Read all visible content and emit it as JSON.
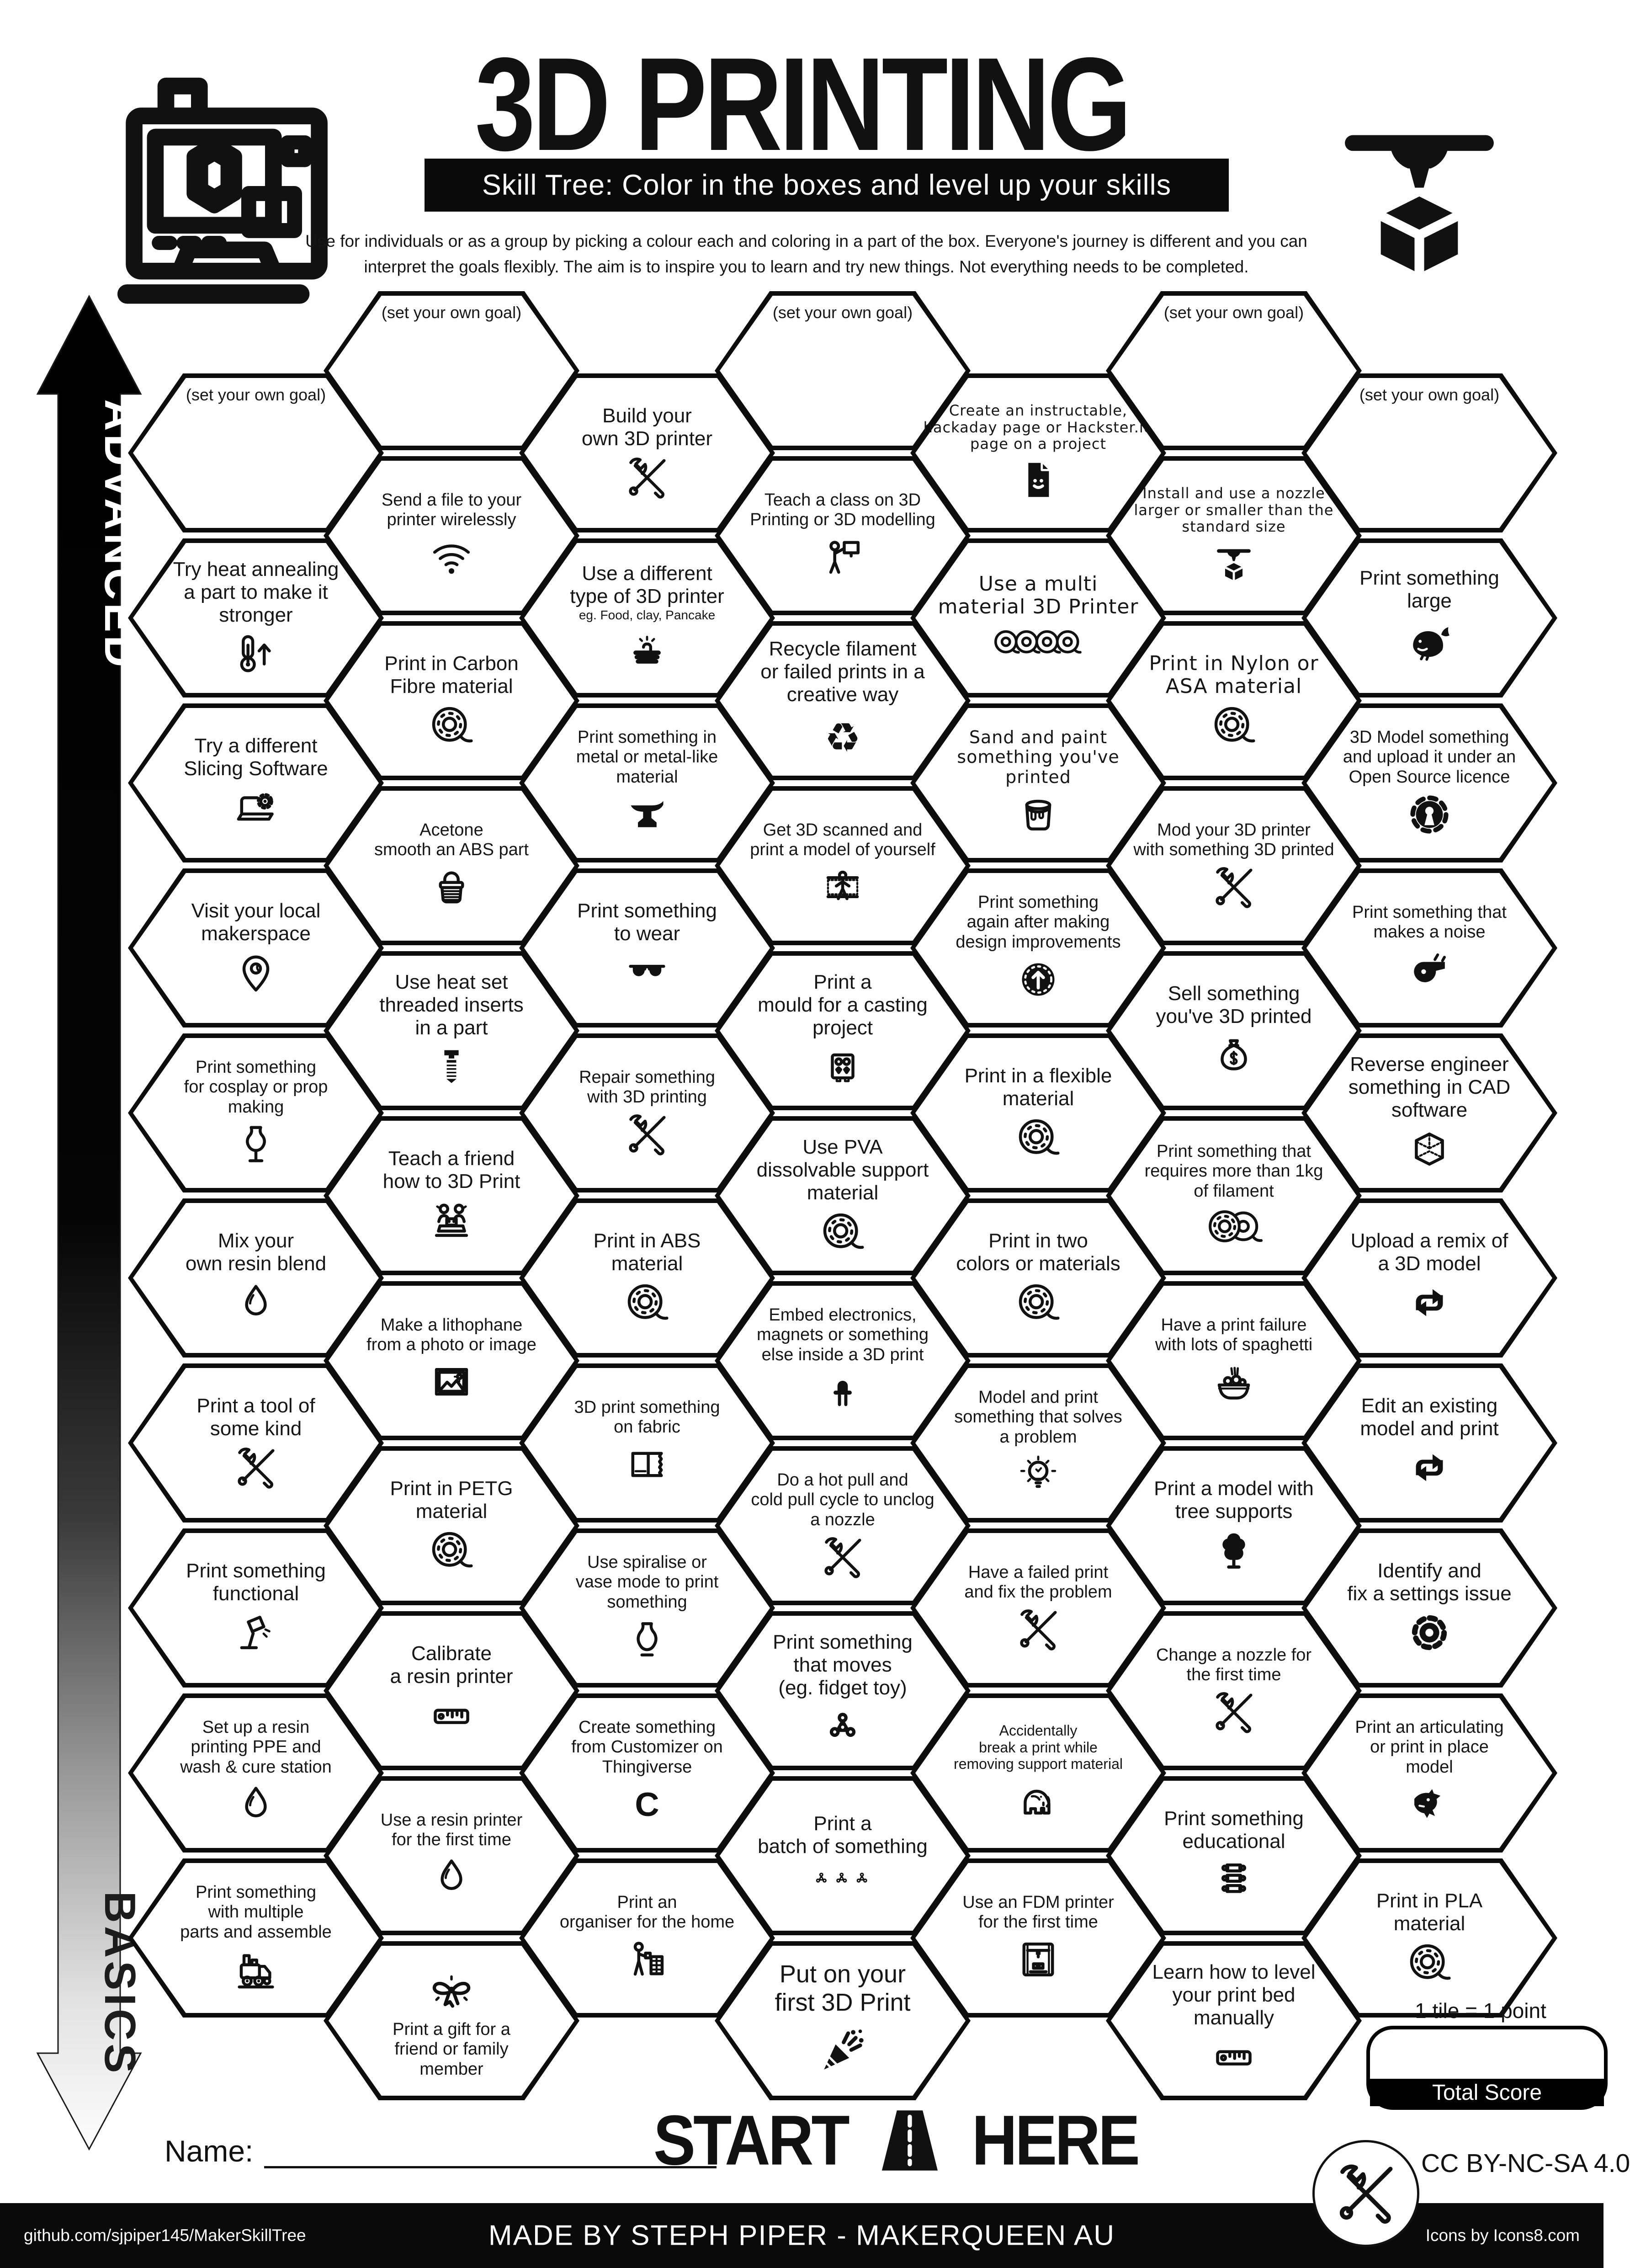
{
  "header": {
    "title": "3D PRINTING",
    "subtitle": "Skill Tree:  Color in the boxes and level up your skills",
    "description": [
      "Use for individuals or as a group by picking a colour each and coloring in a part of the box.  Everyone's journey is different and you can",
      "interpret the goals flexibly.  The aim is to inspire you to learn and try new things. Not everything needs to be completed."
    ],
    "left_icon": "3d-printer-icon",
    "right_icon": "printhead-cube-icon"
  },
  "axis": {
    "top_label": "ADVANCED",
    "bottom_label": "BASICS"
  },
  "hexes": [
    {
      "c": 1,
      "r": 0,
      "name": "goal-1",
      "goal": true,
      "lines": [
        "(set your own goal)"
      ]
    },
    {
      "c": 1,
      "r": 1,
      "name": "heat-annealing",
      "icon": "thermometer",
      "lines": [
        "Try heat annealing",
        "a part to make it",
        "stronger"
      ]
    },
    {
      "c": 1,
      "r": 2,
      "name": "slicing-software",
      "icon": "laptopgear",
      "lines": [
        "Try a different",
        "Slicing Software"
      ]
    },
    {
      "c": 1,
      "r": 3,
      "name": "visit-makerspace",
      "icon": "pin",
      "lines": [
        "Visit your local",
        "makerspace"
      ]
    },
    {
      "c": 1,
      "r": 4,
      "name": "cosplay-prop",
      "icon": "mannequin",
      "size": "s",
      "lines": [
        "Print something",
        "for cosplay or prop",
        "making"
      ]
    },
    {
      "c": 1,
      "r": 5,
      "name": "resin-blend",
      "icon": "droplet",
      "lines": [
        "Mix your",
        "own resin blend"
      ]
    },
    {
      "c": 1,
      "r": 6,
      "name": "print-tool",
      "icon": "tools",
      "lines": [
        "Print a tool of",
        "some kind"
      ]
    },
    {
      "c": 1,
      "r": 7,
      "name": "print-functional",
      "icon": "lamp",
      "lines": [
        "Print something",
        "functional"
      ]
    },
    {
      "c": 1,
      "r": 8,
      "name": "resin-ppe-station",
      "icon": "droplet",
      "size": "s",
      "lines": [
        "Set up a resin",
        "printing PPE and",
        "wash & cure station"
      ]
    },
    {
      "c": 1,
      "r": 9,
      "name": "multiple-parts",
      "icon": "train",
      "size": "s",
      "lines": [
        "Print something",
        "with multiple",
        "parts and assemble"
      ]
    },
    {
      "c": 2,
      "r": 0,
      "name": "goal-2",
      "goal": true,
      "lines": [
        "(set your own goal)"
      ]
    },
    {
      "c": 2,
      "r": 1,
      "name": "send-wireless",
      "icon": "wifi",
      "size": "s",
      "lines": [
        "Send a file to your",
        "printer wirelessly"
      ]
    },
    {
      "c": 2,
      "r": 2,
      "name": "carbon-fibre",
      "icon": "spool",
      "lines": [
        "Print in Carbon",
        "Fibre material"
      ]
    },
    {
      "c": 2,
      "r": 3,
      "name": "acetone-smooth",
      "icon": "acetone",
      "size": "s",
      "lines": [
        "Acetone",
        "smooth an ABS part"
      ]
    },
    {
      "c": 2,
      "r": 4,
      "name": "heat-set-inserts",
      "icon": "insert",
      "lines": [
        "Use heat set",
        "threaded inserts",
        "in a part"
      ]
    },
    {
      "c": 2,
      "r": 5,
      "name": "teach-friend",
      "icon": "people",
      "lines": [
        "Teach a friend",
        "how to 3D Print"
      ]
    },
    {
      "c": 2,
      "r": 6,
      "name": "lithophane",
      "icon": "image",
      "size": "s",
      "lines": [
        "Make a lithophane",
        "from a photo or image"
      ]
    },
    {
      "c": 2,
      "r": 7,
      "name": "petg-material",
      "icon": "spool",
      "lines": [
        "Print in PETG",
        "material"
      ]
    },
    {
      "c": 2,
      "r": 8,
      "name": "calibrate-resin",
      "icon": "ruler",
      "lines": [
        "Calibrate",
        "a resin printer"
      ]
    },
    {
      "c": 2,
      "r": 9,
      "name": "resin-first-time",
      "icon": "droplet",
      "size": "s",
      "lines": [
        "Use a resin printer",
        "for the first time"
      ]
    },
    {
      "c": 2,
      "r": 10,
      "name": "gift-for-friend",
      "icon": "giftbow",
      "icontop": true,
      "size": "s",
      "lines": [
        "Print a gift for a",
        "friend or family",
        "member"
      ]
    },
    {
      "c": 3,
      "r": 0,
      "name": "build-own-printer",
      "icon": "tools",
      "lines": [
        "Build your",
        "own 3D printer"
      ]
    },
    {
      "c": 3,
      "r": 1,
      "name": "different-type-printer",
      "icon": "pancake",
      "sub": "eg. Food, clay, Pancake",
      "lines": [
        "Use a different",
        "type of 3D printer"
      ]
    },
    {
      "c": 3,
      "r": 2,
      "name": "metal-material",
      "icon": "anvil",
      "size": "s",
      "lines": [
        "Print something in",
        "metal or metal-like",
        "material"
      ]
    },
    {
      "c": 3,
      "r": 3,
      "name": "print-to-wear",
      "icon": "sunglasses",
      "lines": [
        "Print something",
        "to wear"
      ]
    },
    {
      "c": 3,
      "r": 4,
      "name": "repair-with-printing",
      "icon": "tools",
      "size": "s",
      "lines": [
        "Repair something",
        "with 3D printing"
      ]
    },
    {
      "c": 3,
      "r": 5,
      "name": "abs-material",
      "icon": "spool",
      "lines": [
        "Print in ABS",
        "material"
      ]
    },
    {
      "c": 3,
      "r": 6,
      "name": "print-on-fabric",
      "icon": "fabric",
      "size": "s",
      "lines": [
        "3D print something",
        "on fabric"
      ]
    },
    {
      "c": 3,
      "r": 7,
      "name": "vase-mode",
      "icon": "vase",
      "size": "s",
      "lines": [
        "Use spiralise or",
        "vase mode to print",
        "something"
      ]
    },
    {
      "c": 3,
      "r": 8,
      "name": "customizer-thingiverse",
      "icon": "customizer",
      "size": "s",
      "lines": [
        "Create something",
        "from Customizer on",
        "Thingiverse"
      ]
    },
    {
      "c": 3,
      "r": 9,
      "name": "home-organiser",
      "icon": "organiser",
      "size": "s",
      "lines": [
        "Print an",
        "organiser for the home"
      ]
    },
    {
      "c": 4,
      "r": 0,
      "name": "goal-4",
      "goal": true,
      "lines": [
        "(set your own goal)"
      ]
    },
    {
      "c": 4,
      "r": 1,
      "name": "teach-class",
      "icon": "presenter",
      "size": "s",
      "lines": [
        "Teach a class on 3D",
        "Printing or 3D modelling"
      ]
    },
    {
      "c": 4,
      "r": 2,
      "name": "recycle-filament",
      "icon": "recycle",
      "lines": [
        "Recycle filament",
        "or failed prints in a",
        "creative way"
      ]
    },
    {
      "c": 4,
      "r": 3,
      "name": "get-3d-scanned",
      "icon": "bodyscan",
      "size": "s",
      "lines": [
        "Get 3D scanned and",
        "print a model of yourself"
      ]
    },
    {
      "c": 4,
      "r": 4,
      "name": "casting-mould",
      "icon": "mould",
      "lines": [
        "Print a",
        "mould for a casting",
        "project"
      ]
    },
    {
      "c": 4,
      "r": 5,
      "name": "pva-support",
      "icon": "spool",
      "lines": [
        "Use PVA",
        "dissolvable support",
        "material"
      ]
    },
    {
      "c": 4,
      "r": 6,
      "name": "embed-electronics",
      "icon": "led",
      "size": "s",
      "lines": [
        "Embed electronics,",
        "magnets or something",
        "else inside a 3D print"
      ]
    },
    {
      "c": 4,
      "r": 7,
      "name": "hot-cold-pull",
      "icon": "tools",
      "size": "s",
      "lines": [
        "Do a hot pull and",
        "cold pull cycle to unclog",
        "a nozzle"
      ]
    },
    {
      "c": 4,
      "r": 8,
      "name": "print-moves",
      "icon": "spinner",
      "lines": [
        "Print something",
        "that moves",
        "(eg. fidget toy)"
      ]
    },
    {
      "c": 4,
      "r": 9,
      "name": "print-batch",
      "icon": "spinner-batch",
      "lines": [
        "Print a",
        "batch of something"
      ]
    },
    {
      "c": 4,
      "r": 10,
      "name": "first-3d-print",
      "icon": "popper",
      "size": "l",
      "lines": [
        "Put on your",
        "first 3D Print"
      ]
    },
    {
      "c": 5,
      "r": 0,
      "name": "instructable-page",
      "icon": "document",
      "size": "xs",
      "alt": true,
      "lines": [
        "Create an instructable,",
        "hackaday page or Hackster.io",
        "page on a project"
      ]
    },
    {
      "c": 5,
      "r": 1,
      "name": "multi-material",
      "icon": "spools4",
      "alt": true,
      "lines": [
        "Use a multi",
        "material 3D Printer"
      ]
    },
    {
      "c": 5,
      "r": 2,
      "name": "sand-and-paint",
      "icon": "paint",
      "alt": true,
      "size": "s",
      "lines": [
        "Sand and paint",
        "something you've",
        "printed"
      ]
    },
    {
      "c": 5,
      "r": 3,
      "name": "design-improvements",
      "icon": "improve",
      "size": "s",
      "lines": [
        "Print something",
        "again after making",
        "design improvements"
      ]
    },
    {
      "c": 5,
      "r": 4,
      "name": "flexible-material",
      "icon": "spool",
      "lines": [
        "Print in a flexible",
        "material"
      ]
    },
    {
      "c": 5,
      "r": 5,
      "name": "two-colors",
      "icon": "spool",
      "lines": [
        "Print in two",
        "colors or materials"
      ]
    },
    {
      "c": 5,
      "r": 6,
      "name": "solve-problem",
      "icon": "bulb",
      "size": "s",
      "lines": [
        "Model and print",
        "something that solves",
        "a problem"
      ]
    },
    {
      "c": 5,
      "r": 7,
      "name": "failed-print-fix",
      "icon": "tools",
      "size": "s",
      "lines": [
        "Have a failed print",
        "and fix the problem"
      ]
    },
    {
      "c": 5,
      "r": 8,
      "name": "break-removing-support",
      "icon": "elephant",
      "size": "xs",
      "lines": [
        "Accidentally",
        "break a print while",
        "removing support material"
      ]
    },
    {
      "c": 5,
      "r": 9,
      "name": "fdm-first-time",
      "icon": "fdm",
      "size": "s",
      "lines": [
        "Use an FDM printer",
        "for the first time"
      ]
    },
    {
      "c": 6,
      "r": 0,
      "name": "goal-6",
      "goal": true,
      "lines": [
        "(set your own goal)"
      ]
    },
    {
      "c": 6,
      "r": 1,
      "name": "nozzle-size",
      "icon": "printhead",
      "size": "xs",
      "alt": true,
      "lines": [
        "Install and use a nozzle",
        "larger or smaller than the",
        "standard size"
      ]
    },
    {
      "c": 6,
      "r": 2,
      "name": "nylon-asa",
      "icon": "spool",
      "alt": true,
      "lines": [
        "Print in Nylon or",
        "ASA material"
      ]
    },
    {
      "c": 6,
      "r": 3,
      "name": "mod-your-printer",
      "icon": "tools",
      "size": "s",
      "lines": [
        "Mod your 3D printer",
        "with something 3D printed"
      ]
    },
    {
      "c": 6,
      "r": 4,
      "name": "sell-printed",
      "icon": "moneybag",
      "lines": [
        "Sell something",
        "you've 3D printed"
      ]
    },
    {
      "c": 6,
      "r": 5,
      "name": "more-than-1kg",
      "icon": "spools2",
      "size": "s",
      "lines": [
        "Print something that",
        "requires more than 1kg",
        "of filament"
      ]
    },
    {
      "c": 6,
      "r": 6,
      "name": "spaghetti-failure",
      "icon": "spaghetti",
      "size": "s",
      "lines": [
        "Have a print failure",
        "with lots of spaghetti"
      ]
    },
    {
      "c": 6,
      "r": 7,
      "name": "tree-supports",
      "icon": "tree",
      "lines": [
        "Print a model with",
        "tree supports"
      ]
    },
    {
      "c": 6,
      "r": 8,
      "name": "change-nozzle",
      "icon": "tools",
      "size": "s",
      "lines": [
        "Change a nozzle for",
        "the first time"
      ]
    },
    {
      "c": 6,
      "r": 9,
      "name": "print-educational",
      "icon": "spine",
      "lines": [
        "Print something",
        "educational"
      ]
    },
    {
      "c": 6,
      "r": 10,
      "name": "level-print-bed",
      "icon": "ruler",
      "lines": [
        "Learn how to level",
        "your print bed",
        "manually"
      ]
    },
    {
      "c": 7,
      "r": 0,
      "name": "goal-7",
      "goal": true,
      "lines": [
        "(set your own goal)"
      ]
    },
    {
      "c": 7,
      "r": 1,
      "name": "print-large",
      "icon": "whale",
      "lines": [
        "Print something",
        "large"
      ]
    },
    {
      "c": 7,
      "r": 2,
      "name": "open-source-model",
      "icon": "opensource",
      "size": "s",
      "lines": [
        "3D Model something",
        "and upload it under an",
        "Open Source licence"
      ]
    },
    {
      "c": 7,
      "r": 3,
      "name": "makes-noise",
      "icon": "whistle",
      "size": "s",
      "lines": [
        "Print something that",
        "makes a noise"
      ]
    },
    {
      "c": 7,
      "r": 4,
      "name": "reverse-engineer-cad",
      "icon": "cadcube",
      "lines": [
        "Reverse engineer",
        "something in CAD",
        "software"
      ]
    },
    {
      "c": 7,
      "r": 5,
      "name": "upload-remix",
      "icon": "remix",
      "lines": [
        "Upload a remix of",
        "a 3D model"
      ]
    },
    {
      "c": 7,
      "r": 6,
      "name": "edit-existing-model",
      "icon": "remix",
      "lines": [
        "Edit an existing",
        "model and print"
      ]
    },
    {
      "c": 7,
      "r": 7,
      "name": "fix-settings-issue",
      "icon": "gear",
      "lines": [
        "Identify and",
        "fix a settings issue"
      ]
    },
    {
      "c": 7,
      "r": 8,
      "name": "articulating-model",
      "icon": "dragon",
      "size": "s",
      "lines": [
        "Print an articulating",
        "or print in place",
        "model"
      ]
    },
    {
      "c": 7,
      "r": 9,
      "name": "pla-material",
      "icon": "spool",
      "lines": [
        "Print in PLA",
        "material"
      ]
    }
  ],
  "start": {
    "start_label": "START",
    "here_label": "HERE",
    "icon": "road-icon"
  },
  "name_label": "Name:",
  "score": {
    "tile_note": "1 tile = 1 point",
    "total_label": "Total Score"
  },
  "license": "CC BY-NC-SA 4.0",
  "footer": {
    "left": "github.com/sjpiper145/MakerSkillTree",
    "center": "MADE BY STEPH PIPER  -  MAKERQUEEN AU",
    "right": "Icons by Icons8.com"
  },
  "colors": {
    "ink": "#0a0a0a",
    "paper": "#ffffff"
  }
}
